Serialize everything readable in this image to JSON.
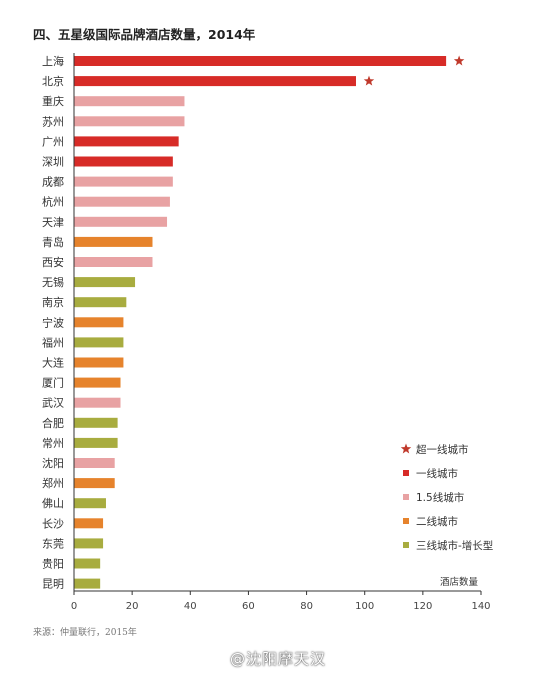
{
  "title": "四、五星级国际品牌酒店数量，2014年",
  "source": "来源：仲量联行，2015年",
  "watermark": "@沈阳摩天汉",
  "colors": {
    "tier_super": "#d72b27",
    "tier1": "#d72b27",
    "tier15": "#e8a2a3",
    "tier2": "#e6832c",
    "tier3": "#a8ac3f",
    "star": "#c0392b",
    "axis": "#333333"
  },
  "chart_data": {
    "type": "bar",
    "orientation": "horizontal",
    "xlabel": "酒店数量",
    "xlim": [
      0,
      140
    ],
    "xticks": [
      0,
      20,
      40,
      60,
      80,
      100,
      120,
      140
    ],
    "categories": [
      "上海",
      "北京",
      "重庆",
      "苏州",
      "广州",
      "深圳",
      "成都",
      "杭州",
      "天津",
      "青岛",
      "西安",
      "无锡",
      "南京",
      "宁波",
      "福州",
      "大连",
      "厦门",
      "武汉",
      "合肥",
      "常州",
      "沈阳",
      "郑州",
      "佛山",
      "长沙",
      "东莞",
      "贵阳",
      "昆明"
    ],
    "values": [
      128,
      97,
      38,
      38,
      36,
      34,
      34,
      33,
      32,
      27,
      27,
      21,
      18,
      17,
      17,
      17,
      16,
      16,
      15,
      15,
      14,
      14,
      11,
      10,
      10,
      9,
      9
    ],
    "tiers": [
      "tier1",
      "tier1",
      "tier15",
      "tier15",
      "tier1",
      "tier1",
      "tier15",
      "tier15",
      "tier15",
      "tier2",
      "tier15",
      "tier3",
      "tier3",
      "tier2",
      "tier3",
      "tier2",
      "tier2",
      "tier15",
      "tier3",
      "tier3",
      "tier15",
      "tier2",
      "tier3",
      "tier2",
      "tier3",
      "tier3",
      "tier3"
    ],
    "starred": [
      "上海",
      "北京"
    ],
    "legend_position": "right",
    "legend": [
      {
        "key": "tier_super",
        "label": "超一线城市",
        "marker": "star"
      },
      {
        "key": "tier1",
        "label": "一线城市",
        "marker": "square"
      },
      {
        "key": "tier15",
        "label": "1.5线城市",
        "marker": "square"
      },
      {
        "key": "tier2",
        "label": "二线城市",
        "marker": "square"
      },
      {
        "key": "tier3",
        "label": "三线城市-增长型",
        "marker": "square"
      }
    ],
    "grid": false
  }
}
